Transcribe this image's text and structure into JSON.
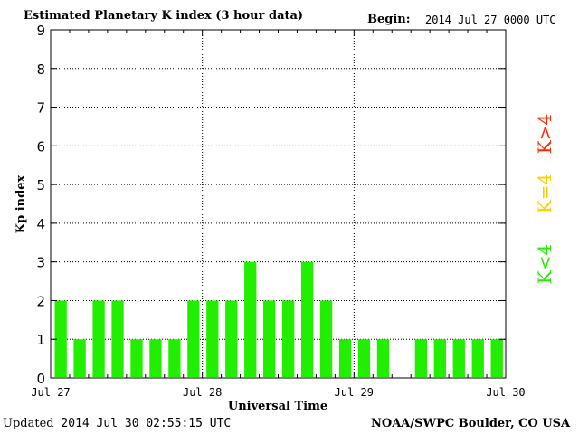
{
  "header": {
    "title": "Estimated Planetary K index (3 hour data)",
    "begin_label": "Begin:",
    "begin_value": "2014 Jul 27 0000 UTC"
  },
  "footer": {
    "updated_label": "Updated",
    "updated_value": "2014 Jul 30 02:55:15 UTC",
    "credit": "NOAA/SWPC Boulder, CO USA"
  },
  "legend": [
    {
      "label": "K>4",
      "color": "#ff2a00"
    },
    {
      "label": "K=4",
      "color": "#ffcc00"
    },
    {
      "label": "K<4",
      "color": "#22ee00"
    }
  ],
  "chart_data": {
    "type": "bar",
    "ylabel": "Kp index",
    "xlabel": "Universal Time",
    "ylim": [
      0,
      9
    ],
    "yticks": [
      0,
      1,
      2,
      3,
      4,
      5,
      6,
      7,
      8,
      9
    ],
    "x_tick_labels": [
      "Jul 27",
      "Jul 28",
      "Jul 29",
      "Jul 30"
    ],
    "bins_per_day": 8,
    "values": [
      2,
      1,
      2,
      2,
      1,
      1,
      1,
      2,
      2,
      2,
      3,
      2,
      2,
      3,
      2,
      1,
      1,
      1,
      null,
      1,
      1,
      1,
      1,
      1
    ],
    "bar_color": "#22ee00",
    "grid": true
  }
}
